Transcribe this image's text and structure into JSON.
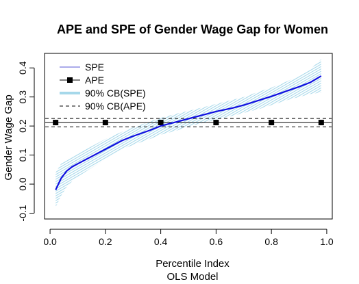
{
  "chart_data": {
    "type": "line",
    "title": "APE and SPE of Gender Wage Gap for Women",
    "xlabel": "Percentile Index",
    "xlabel2": "OLS Model",
    "ylabel": "Gender Wage Gap",
    "xlim": [
      -0.02,
      1.02
    ],
    "ylim": [
      -0.12,
      0.45
    ],
    "grid": false,
    "xticks": [
      0.0,
      0.2,
      0.4,
      0.6,
      0.8,
      1.0
    ],
    "xtick_labels": [
      "0.0",
      "0.2",
      "0.4",
      "0.6",
      "0.8",
      "1.0"
    ],
    "yticks": [
      -0.1,
      0.0,
      0.1,
      0.2,
      0.3,
      0.4
    ],
    "ytick_labels": [
      "-0.1",
      "0.0",
      "0.1",
      "0.2",
      "0.3",
      "0.4"
    ],
    "legend": {
      "position": "top-left",
      "entries": [
        {
          "label": "SPE",
          "style": "line",
          "color": "#7777dd"
        },
        {
          "label": "APE",
          "style": "line-square",
          "color": "#000000"
        },
        {
          "label": "90% CB(SPE)",
          "style": "thick-line",
          "color": "#a6d8ea"
        },
        {
          "label": "90% CB(APE)",
          "style": "dashed",
          "color": "#000000"
        }
      ]
    },
    "series": [
      {
        "name": "SPE",
        "color": "#1010e0",
        "x": [
          0.02,
          0.04,
          0.06,
          0.08,
          0.1,
          0.14,
          0.2,
          0.26,
          0.3,
          0.36,
          0.4,
          0.46,
          0.5,
          0.56,
          0.6,
          0.66,
          0.7,
          0.76,
          0.8,
          0.86,
          0.9,
          0.94,
          0.98
        ],
        "values": [
          -0.02,
          0.02,
          0.045,
          0.06,
          0.07,
          0.09,
          0.12,
          0.15,
          0.165,
          0.185,
          0.2,
          0.215,
          0.225,
          0.24,
          0.25,
          0.262,
          0.272,
          0.29,
          0.302,
          0.322,
          0.335,
          0.35,
          0.372
        ]
      },
      {
        "name": "APE",
        "color": "#000000",
        "x": [
          0.02,
          0.2,
          0.4,
          0.6,
          0.8,
          0.98
        ],
        "values": [
          0.212,
          0.212,
          0.212,
          0.212,
          0.212,
          0.212
        ]
      }
    ],
    "cb_spe": {
      "name": "90% CB(SPE)",
      "color": "#a6d8ea",
      "x": [
        0.02,
        0.04,
        0.06,
        0.08,
        0.1,
        0.14,
        0.2,
        0.26,
        0.3,
        0.36,
        0.4,
        0.46,
        0.5,
        0.56,
        0.6,
        0.66,
        0.7,
        0.76,
        0.8,
        0.86,
        0.9,
        0.94,
        0.98
      ],
      "lower": [
        -0.08,
        -0.04,
        -0.01,
        0.01,
        0.025,
        0.05,
        0.085,
        0.12,
        0.135,
        0.155,
        0.17,
        0.185,
        0.198,
        0.212,
        0.222,
        0.235,
        0.245,
        0.26,
        0.272,
        0.29,
        0.3,
        0.31,
        0.315
      ],
      "upper": [
        0.04,
        0.07,
        0.085,
        0.095,
        0.105,
        0.125,
        0.155,
        0.18,
        0.195,
        0.215,
        0.228,
        0.243,
        0.252,
        0.266,
        0.276,
        0.29,
        0.3,
        0.32,
        0.332,
        0.355,
        0.372,
        0.395,
        0.43
      ]
    },
    "cb_ape": {
      "name": "90% CB(APE)",
      "lower": 0.197,
      "upper": 0.226
    }
  }
}
